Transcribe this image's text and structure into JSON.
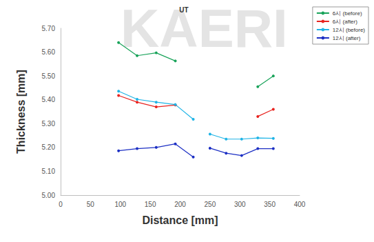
{
  "chart_data": {
    "type": "line",
    "title": "UT",
    "x_label": "Distance [mm]",
    "y_label": "Thickness [mm]",
    "annotations": [
      "KAERI"
    ],
    "xlim": [
      0,
      400
    ],
    "xticks": [
      0,
      50,
      100,
      150,
      200,
      250,
      300,
      350,
      400
    ],
    "ylim": [
      5,
      5.7
    ],
    "yticks": [
      {
        "value": 5,
        "label": "5.00"
      },
      {
        "value": 5.1,
        "label": "5.10"
      },
      {
        "value": 5.2,
        "label": "5.20"
      },
      {
        "value": 5.3,
        "label": "5.30"
      },
      {
        "value": 5.4,
        "label": "5.40"
      },
      {
        "value": 5.5,
        "label": "5.50"
      },
      {
        "value": 5.6,
        "label": "5.60"
      },
      {
        "value": 5.7,
        "label": "5.70"
      }
    ],
    "grid": false,
    "legend": "top-right",
    "marker": "circle",
    "series": [
      {
        "name": "6시 (before)",
        "color": "#19a35a",
        "x": [
          97,
          128,
          160,
          192,
          null,
          330,
          356
        ],
        "values": [
          5.64,
          5.585,
          5.597,
          5.563,
          null,
          5.455,
          5.5
        ]
      },
      {
        "name": "6시 (after)",
        "color": "#e8231f",
        "x": [
          97,
          128,
          160,
          192,
          null,
          330,
          356
        ],
        "values": [
          5.418,
          5.39,
          5.37,
          5.378,
          null,
          5.33,
          5.36
        ]
      },
      {
        "name": "12시 (before)",
        "color": "#1fb4e6",
        "x": [
          97,
          128,
          160,
          192,
          222,
          null,
          250,
          277,
          303,
          330,
          356
        ],
        "values": [
          5.436,
          5.402,
          5.39,
          5.38,
          5.318,
          null,
          5.256,
          5.235,
          5.235,
          5.24,
          5.238
        ]
      },
      {
        "name": "12시 (after)",
        "color": "#1c2fc4",
        "x": [
          97,
          128,
          160,
          192,
          222,
          null,
          250,
          277,
          303,
          330,
          356
        ],
        "values": [
          5.186,
          5.195,
          5.2,
          5.215,
          5.16,
          null,
          5.197,
          5.176,
          5.166,
          5.195,
          5.195
        ]
      }
    ]
  }
}
